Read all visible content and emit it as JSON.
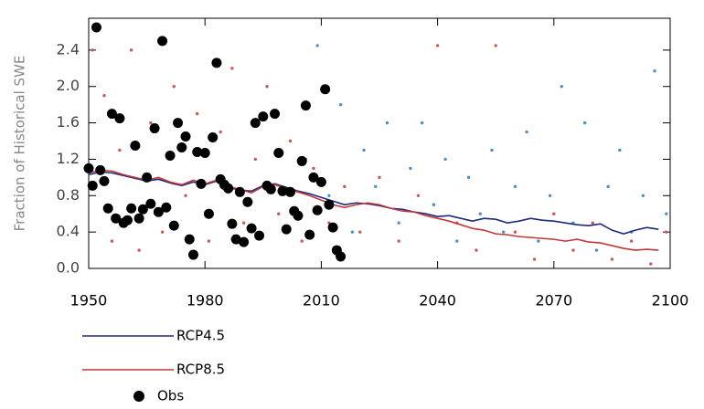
{
  "chart_data": {
    "type": "line",
    "ylabel": "Fraction of Historical SWE",
    "xlim": [
      1950,
      2100
    ],
    "xticks": [
      1950,
      1980,
      2010,
      2040,
      2070,
      2100
    ],
    "ylim": [
      0,
      2.75
    ],
    "yticks": [
      {
        "value": 0,
        "label": "0.0"
      },
      0.4,
      0.8,
      1.2,
      1.6,
      {
        "value": 2,
        "label": "2.0"
      },
      2.4
    ],
    "series": [
      {
        "name": "RCP4.5",
        "type": "line",
        "color": "#1f2a7a",
        "dot_color": "#4a90d0",
        "x": [
          1950,
          1953,
          1956,
          1959,
          1962,
          1965,
          1968,
          1971,
          1974,
          1977,
          1980,
          1983,
          1986,
          1989,
          1992,
          1995,
          1998,
          2001,
          2004,
          2007,
          2010,
          2013,
          2016,
          2019,
          2022,
          2025,
          2028,
          2031,
          2034,
          2037,
          2040,
          2043,
          2046,
          2049,
          2052,
          2055,
          2058,
          2061,
          2064,
          2067,
          2070,
          2073,
          2076,
          2079,
          2082,
          2085,
          2088,
          2091,
          2094,
          2097
        ],
        "values": [
          1.03,
          1.06,
          1.05,
          1.02,
          0.99,
          0.96,
          0.98,
          0.94,
          0.91,
          0.95,
          0.92,
          0.96,
          0.89,
          0.86,
          0.85,
          0.91,
          0.93,
          0.89,
          0.85,
          0.82,
          0.78,
          0.74,
          0.7,
          0.72,
          0.71,
          0.69,
          0.66,
          0.65,
          0.62,
          0.6,
          0.57,
          0.58,
          0.55,
          0.52,
          0.55,
          0.54,
          0.5,
          0.52,
          0.55,
          0.53,
          0.52,
          0.5,
          0.48,
          0.47,
          0.49,
          0.42,
          0.38,
          0.42,
          0.45,
          0.43
        ],
        "scatter_x": [
          2006,
          2009,
          2012,
          2015,
          2018,
          2021,
          2024,
          2027,
          2030,
          2033,
          2036,
          2039,
          2042,
          2045,
          2048,
          2051,
          2054,
          2057,
          2060,
          2063,
          2066,
          2069,
          2072,
          2075,
          2078,
          2081,
          2084,
          2087,
          2090,
          2093,
          2096,
          2099
        ],
        "scatter_y": [
          1.2,
          2.45,
          0.8,
          1.8,
          0.4,
          1.3,
          0.9,
          1.6,
          0.5,
          1.1,
          1.6,
          0.7,
          1.2,
          0.3,
          1.0,
          0.6,
          1.3,
          0.4,
          0.9,
          1.5,
          0.3,
          0.8,
          2.0,
          0.5,
          1.6,
          0.2,
          0.9,
          1.3,
          0.4,
          0.8,
          2.17,
          0.6
        ]
      },
      {
        "name": "RCP8.5",
        "type": "line",
        "color": "#c0393b",
        "dot_color": "#c85a5a",
        "x": [
          1950,
          1953,
          1956,
          1959,
          1962,
          1965,
          1968,
          1971,
          1974,
          1977,
          1980,
          1983,
          1986,
          1989,
          1992,
          1995,
          1998,
          2001,
          2004,
          2007,
          2010,
          2013,
          2016,
          2019,
          2022,
          2025,
          2028,
          2031,
          2034,
          2037,
          2040,
          2043,
          2046,
          2049,
          2052,
          2055,
          2058,
          2061,
          2064,
          2067,
          2070,
          2073,
          2076,
          2079,
          2082,
          2085,
          2088,
          2091,
          2094,
          2097
        ],
        "values": [
          1.05,
          1.08,
          1.07,
          1.03,
          1.0,
          0.97,
          1.0,
          0.95,
          0.92,
          0.97,
          0.93,
          0.97,
          0.9,
          0.87,
          0.83,
          0.9,
          0.92,
          0.88,
          0.84,
          0.8,
          0.75,
          0.7,
          0.67,
          0.7,
          0.72,
          0.7,
          0.66,
          0.63,
          0.62,
          0.58,
          0.55,
          0.52,
          0.48,
          0.44,
          0.42,
          0.38,
          0.37,
          0.35,
          0.34,
          0.33,
          0.32,
          0.3,
          0.32,
          0.29,
          0.28,
          0.25,
          0.22,
          0.2,
          0.21,
          0.2
        ],
        "scatter_x": [
          1951,
          1954,
          1956,
          1958,
          1961,
          1963,
          1966,
          1969,
          1972,
          1975,
          1978,
          1981,
          1984,
          1987,
          1990,
          1993,
          1996,
          1999,
          2002,
          2005,
          2008,
          2012,
          2016,
          2020,
          2025,
          2030,
          2035,
          2040,
          2045,
          2050,
          2055,
          2060,
          2065,
          2070,
          2075,
          2080,
          2085,
          2090,
          2095,
          2099
        ],
        "scatter_y": [
          2.4,
          1.9,
          0.3,
          1.3,
          2.4,
          0.2,
          1.6,
          0.4,
          2.0,
          0.8,
          1.7,
          0.3,
          1.5,
          2.2,
          0.5,
          1.2,
          2.0,
          0.6,
          1.4,
          0.3,
          1.1,
          0.5,
          0.9,
          0.4,
          1.0,
          0.3,
          0.8,
          2.45,
          0.5,
          0.2,
          2.45,
          0.4,
          0.1,
          0.6,
          0.2,
          0.5,
          0.1,
          0.3,
          0.05,
          0.4
        ]
      },
      {
        "name": "Obs",
        "type": "scatter",
        "color": "#000000",
        "x": [
          1950,
          1951,
          1952,
          1953,
          1954,
          1955,
          1956,
          1957,
          1958,
          1959,
          1960,
          1961,
          1962,
          1963,
          1964,
          1965,
          1966,
          1967,
          1968,
          1969,
          1970,
          1971,
          1972,
          1973,
          1974,
          1975,
          1976,
          1977,
          1978,
          1979,
          1980,
          1981,
          1982,
          1983,
          1984,
          1985,
          1986,
          1987,
          1988,
          1989,
          1990,
          1991,
          1992,
          1993,
          1994,
          1995,
          1996,
          1997,
          1998,
          1999,
          2000,
          2001,
          2002,
          2003,
          2004,
          2005,
          2006,
          2007,
          2008,
          2009,
          2010,
          2011,
          2012,
          2013,
          2014,
          2015
        ],
        "values": [
          1.1,
          0.91,
          2.65,
          1.08,
          0.96,
          0.66,
          1.7,
          0.55,
          1.65,
          0.5,
          0.53,
          0.66,
          1.35,
          0.55,
          0.65,
          1.0,
          0.71,
          1.54,
          0.62,
          2.5,
          0.67,
          1.24,
          0.47,
          1.6,
          1.33,
          1.45,
          0.32,
          0.15,
          1.28,
          0.93,
          1.27,
          0.6,
          1.44,
          2.26,
          0.98,
          0.92,
          0.88,
          0.49,
          0.32,
          0.84,
          0.29,
          0.73,
          0.44,
          1.6,
          0.36,
          1.67,
          0.91,
          0.87,
          1.7,
          1.27,
          0.85,
          0.43,
          0.84,
          0.63,
          0.58,
          1.18,
          1.79,
          0.37,
          1.0,
          0.64,
          0.95,
          1.97,
          0.7,
          0.45,
          0.2,
          0.13
        ]
      }
    ]
  }
}
